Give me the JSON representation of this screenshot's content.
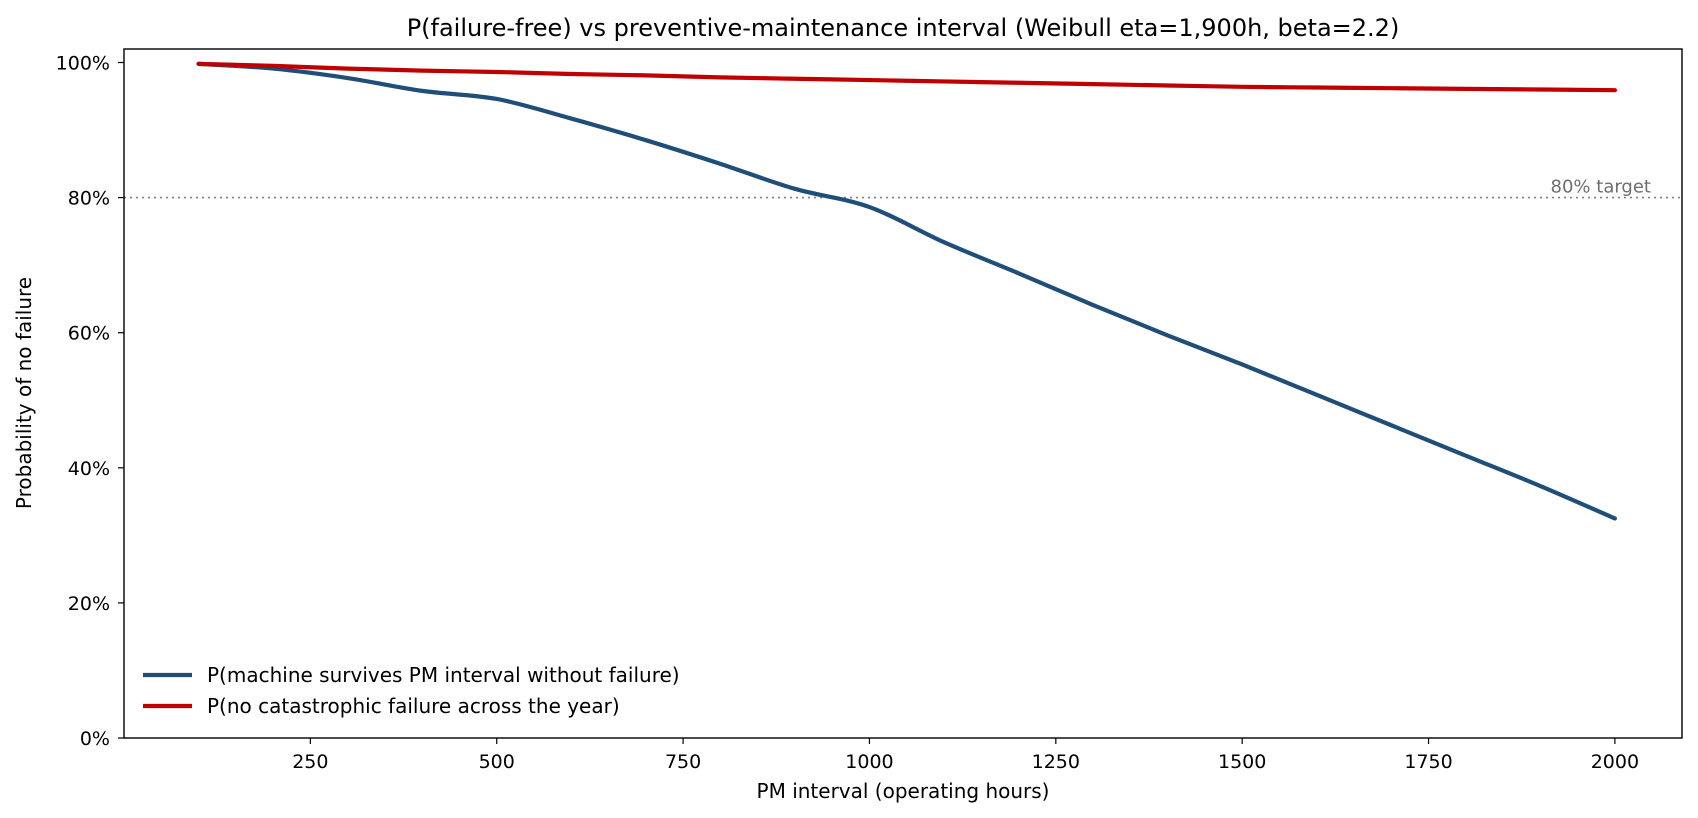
{
  "chart_data": {
    "type": "line",
    "title": "P(failure-free) vs preventive-maintenance interval (Weibull eta=1,900h, beta=2.2)",
    "xlabel": "PM interval  (operating hours)",
    "ylabel": "Probability of no failure",
    "xlim": [
      0,
      2090
    ],
    "ylim": [
      0,
      1.02
    ],
    "x_ticks": [
      250,
      500,
      750,
      1000,
      1250,
      1500,
      1750,
      2000
    ],
    "y_ticks": [
      0,
      0.2,
      0.4,
      0.6,
      0.8,
      1.0
    ],
    "y_tick_labels": [
      "0%",
      "20%",
      "40%",
      "60%",
      "80%",
      "100%"
    ],
    "grid": false,
    "legend_position": "lower-left",
    "reference_line": {
      "y": 0.8,
      "label": "80% target",
      "color": "#808080"
    },
    "series": [
      {
        "name": "P(machine survives PM interval without failure)",
        "color": "#1f4e79",
        "x": [
          100,
          200,
          300,
          400,
          500,
          600,
          700,
          800,
          900,
          1000,
          1100,
          1200,
          1300,
          1400,
          1500,
          1600,
          1700,
          1800,
          1900,
          2000
        ],
        "y": [
          0.998,
          0.991,
          0.977,
          0.958,
          0.946,
          0.917,
          0.885,
          0.85,
          0.813,
          0.786,
          0.734,
          0.688,
          0.641,
          0.596,
          0.553,
          0.508,
          0.463,
          0.418,
          0.373,
          0.325
        ]
      },
      {
        "name": "P(no catastrophic failure across the year)",
        "color": "#c00000",
        "x": [
          100,
          200,
          300,
          400,
          500,
          600,
          700,
          800,
          900,
          1000,
          1100,
          1200,
          1300,
          1400,
          1500,
          1600,
          1700,
          1800,
          1900,
          2000
        ],
        "y": [
          0.998,
          0.995,
          0.991,
          0.988,
          0.986,
          0.983,
          0.981,
          0.978,
          0.976,
          0.974,
          0.972,
          0.97,
          0.968,
          0.966,
          0.964,
          0.963,
          0.962,
          0.961,
          0.96,
          0.959
        ]
      }
    ]
  }
}
